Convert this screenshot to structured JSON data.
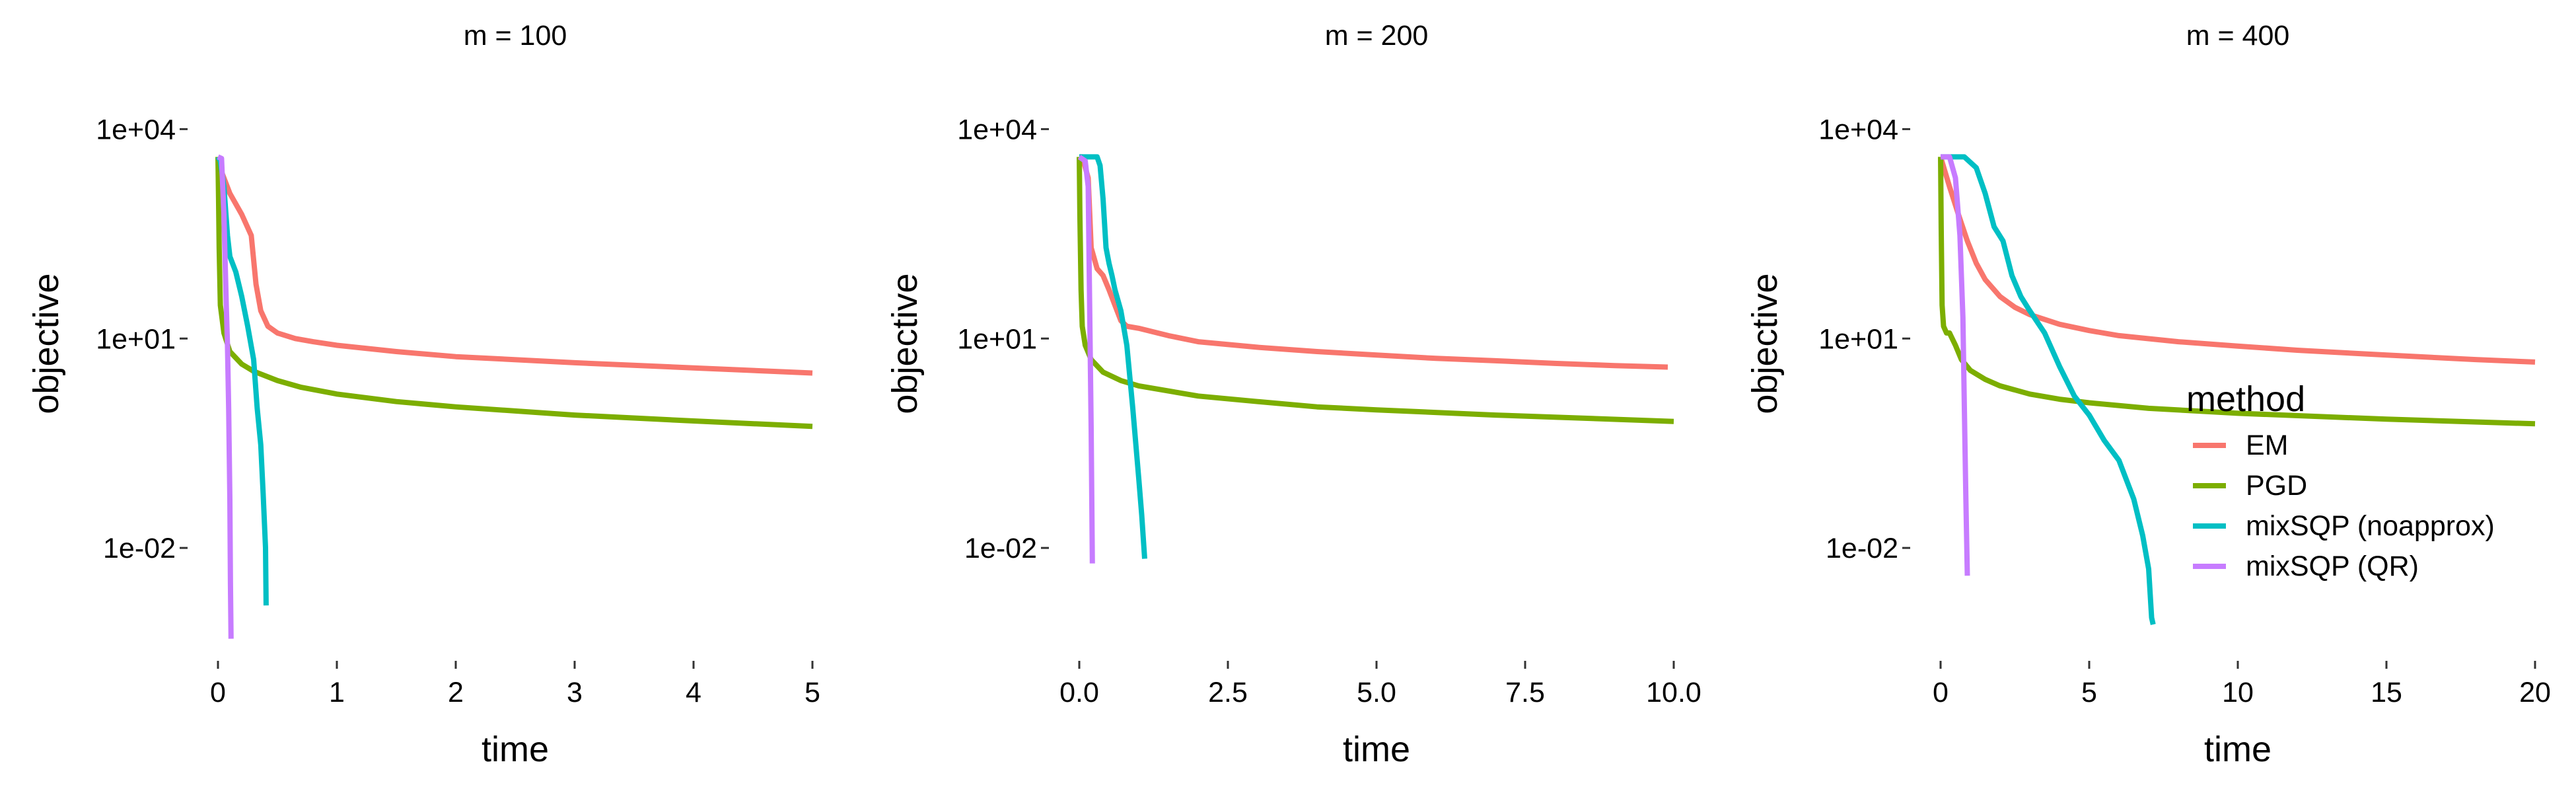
{
  "chart_data": {
    "type": "line",
    "xlabel": "time",
    "ylabel": "objective",
    "y_scale": "log10",
    "y_ticks": [
      {
        "value": 0.01,
        "label": "1e-02"
      },
      {
        "value": 10,
        "label": "1e+01"
      },
      {
        "value": 10000,
        "label": "1e+04"
      }
    ],
    "grid": false,
    "legend": {
      "title": "method",
      "placement": "right, inside third panel",
      "entries": [
        "EM",
        "PGD",
        "mixSQP (noapprox)",
        "mixSQP (QR)"
      ]
    },
    "colors": {
      "EM": "#F8766D",
      "PGD": "#7CAE00",
      "mixSQP (noapprox)": "#00BFC4",
      "mixSQP (QR)": "#C77CFF"
    },
    "panels": [
      {
        "strip": "m = 100",
        "xlim": [
          0,
          5
        ],
        "x_ticks": [
          {
            "value": 0,
            "label": "0"
          },
          {
            "value": 1,
            "label": "1"
          },
          {
            "value": 2,
            "label": "2"
          },
          {
            "value": 3,
            "label": "3"
          },
          {
            "value": 4,
            "label": "4"
          },
          {
            "value": 5,
            "label": "5"
          }
        ],
        "series": [
          {
            "name": "EM",
            "x": [
              0.01,
              0.1,
              0.2,
              0.28,
              0.32,
              0.36,
              0.42,
              0.5,
              0.65,
              0.8,
              1.0,
              1.5,
              2.0,
              3.0,
              4.0,
              5.0
            ],
            "y": [
              3000,
              1200,
              600,
              300,
              60,
              25,
              15,
              12,
              10,
              9,
              8,
              6.5,
              5.5,
              4.5,
              3.8,
              3.2
            ]
          },
          {
            "name": "PGD",
            "x": [
              0.0,
              0.005,
              0.01,
              0.02,
              0.05,
              0.1,
              0.2,
              0.3,
              0.5,
              0.7,
              1.0,
              1.5,
              2.0,
              3.0,
              4.0,
              5.0
            ],
            "y": [
              4000,
              1000,
              200,
              30,
              12,
              6.5,
              4.3,
              3.4,
              2.5,
              2.0,
              1.6,
              1.25,
              1.05,
              0.8,
              0.66,
              0.55
            ]
          },
          {
            "name": "mixSQP (noapprox)",
            "x": [
              0.0,
              0.02,
              0.05,
              0.08,
              0.1,
              0.15,
              0.2,
              0.25,
              0.3,
              0.33,
              0.36,
              0.38,
              0.4,
              0.405
            ],
            "y": [
              4000,
              3500,
              1500,
              300,
              150,
              90,
              40,
              15,
              5,
              1,
              0.3,
              0.06,
              0.01,
              0.0015
            ]
          },
          {
            "name": "mixSQP (QR)",
            "x": [
              0.0,
              0.03,
              0.05,
              0.07,
              0.08,
              0.09,
              0.1,
              0.105,
              0.11
            ],
            "y": [
              4000,
              3800,
              600,
              30,
              8,
              1,
              0.05,
              0.003,
              0.0005
            ]
          }
        ]
      },
      {
        "strip": "m = 200",
        "xlim": [
          0,
          10
        ],
        "x_ticks": [
          {
            "value": 0,
            "label": "0.0"
          },
          {
            "value": 2.5,
            "label": "2.5"
          },
          {
            "value": 5,
            "label": "5.0"
          },
          {
            "value": 7.5,
            "label": "7.5"
          },
          {
            "value": 10,
            "label": "10.0"
          }
        ],
        "series": [
          {
            "name": "EM",
            "x": [
              0.0,
              0.05,
              0.15,
              0.2,
              0.3,
              0.4,
              0.5,
              0.6,
              0.7,
              0.8,
              1.0,
              1.5,
              2.0,
              3.0,
              4.0,
              5.0,
              6.0,
              7.0,
              8.0,
              9.0,
              9.9
            ],
            "y": [
              4000,
              4000,
              2000,
              200,
              100,
              80,
              50,
              30,
              18,
              15,
              14,
              11,
              9,
              7.5,
              6.5,
              5.8,
              5.2,
              4.8,
              4.4,
              4.1,
              3.9
            ]
          },
          {
            "name": "PGD",
            "x": [
              0.0,
              0.01,
              0.03,
              0.05,
              0.1,
              0.2,
              0.4,
              0.7,
              1.0,
              2.0,
              3.0,
              4.0,
              5.0,
              7.0,
              10.0
            ],
            "y": [
              4000,
              600,
              50,
              15,
              8,
              5,
              3.3,
              2.5,
              2.1,
              1.5,
              1.25,
              1.05,
              0.95,
              0.8,
              0.65
            ]
          },
          {
            "name": "mixSQP (noapprox)",
            "x": [
              0.0,
              0.3,
              0.35,
              0.4,
              0.45,
              0.5,
              0.55,
              0.6,
              0.7,
              0.8,
              0.9,
              1.0,
              1.05,
              1.1
            ],
            "y": [
              4000,
              4000,
              3000,
              1000,
              200,
              120,
              80,
              50,
              25,
              8,
              1,
              0.1,
              0.03,
              0.007
            ]
          },
          {
            "name": "mixSQP (QR)",
            "x": [
              0.0,
              0.1,
              0.15,
              0.2,
              0.22
            ],
            "y": [
              4000,
              3500,
              1500,
              0.5,
              0.006
            ]
          }
        ]
      },
      {
        "strip": "m = 400",
        "xlim": [
          0,
          20
        ],
        "x_ticks": [
          {
            "value": 0,
            "label": "0"
          },
          {
            "value": 5,
            "label": "5"
          },
          {
            "value": 10,
            "label": "10"
          },
          {
            "value": 15,
            "label": "15"
          },
          {
            "value": 20,
            "label": "20"
          }
        ],
        "series": [
          {
            "name": "EM",
            "x": [
              0.0,
              0.3,
              0.6,
              0.9,
              1.2,
              1.5,
              2.0,
              2.5,
              3.0,
              4.0,
              5.0,
              6.0,
              8.0,
              10.0,
              12.0,
              15.0,
              18.0,
              20.0
            ],
            "y": [
              4000,
              1500,
              600,
              250,
              120,
              70,
              40,
              28,
              22,
              16,
              13,
              11,
              9,
              7.8,
              6.8,
              5.8,
              5.0,
              4.6
            ]
          },
          {
            "name": "PGD",
            "x": [
              0.0,
              0.02,
              0.05,
              0.1,
              0.2,
              0.3,
              0.5,
              0.7,
              1.0,
              1.5,
              2.0,
              3.0,
              4.0,
              5.0,
              7.0,
              10.0,
              15.0,
              20.0
            ],
            "y": [
              4000,
              400,
              30,
              15,
              12,
              12,
              8,
              5,
              3.5,
              2.6,
              2.1,
              1.6,
              1.35,
              1.2,
              1.0,
              0.85,
              0.7,
              0.6
            ]
          },
          {
            "name": "mixSQP (noapprox)",
            "x": [
              0.0,
              0.8,
              1.2,
              1.5,
              1.8,
              2.1,
              2.4,
              2.7,
              3.0,
              3.5,
              4.0,
              4.5,
              5.0,
              5.5,
              6.0,
              6.5,
              6.8,
              7.0,
              7.1,
              7.15
            ],
            "y": [
              4000,
              4000,
              2800,
              1200,
              400,
              250,
              80,
              40,
              25,
              12,
              4,
              1.5,
              0.8,
              0.35,
              0.18,
              0.05,
              0.015,
              0.005,
              0.001,
              0.0008
            ]
          },
          {
            "name": "mixSQP (QR)",
            "x": [
              0.0,
              0.3,
              0.5,
              0.65,
              0.75,
              0.8,
              0.85,
              0.9
            ],
            "y": [
              4000,
              4000,
              2000,
              300,
              20,
              1,
              0.05,
              0.004
            ]
          }
        ]
      }
    ]
  }
}
